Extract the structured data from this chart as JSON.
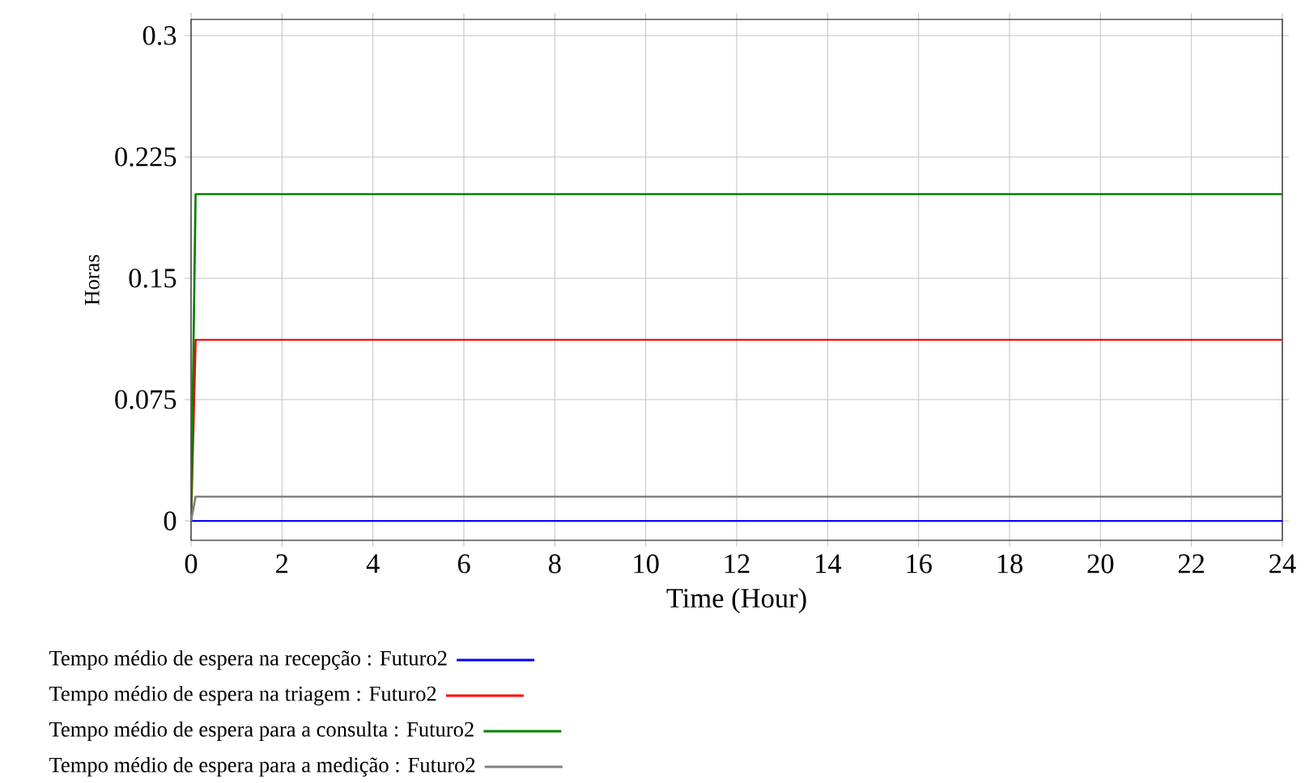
{
  "chart_data": {
    "type": "line",
    "xlabel": "Time (Hour)",
    "ylabel": "Horas",
    "xlim": [
      0,
      24
    ],
    "xticks": [
      0,
      2,
      4,
      6,
      8,
      10,
      12,
      14,
      16,
      18,
      20,
      22,
      24
    ],
    "ylim": [
      -0.012,
      0.31
    ],
    "yticks": [
      0,
      0.075,
      0.15,
      0.225,
      0.3
    ],
    "grid": true,
    "legend": "bottom",
    "series": [
      {
        "name": "Tempo médio de espera na recepção : Futuro2",
        "color": "#0000ff",
        "x": [
          0,
          0.1,
          24
        ],
        "values": [
          0,
          0,
          0
        ]
      },
      {
        "name": "Tempo médio de espera na triagem : Futuro2",
        "color": "#ff0000",
        "x": [
          0,
          0.1,
          24
        ],
        "values": [
          0,
          0.112,
          0.112
        ]
      },
      {
        "name": "Tempo médio de espera para a consulta : Futuro2",
        "color": "#008000",
        "x": [
          0,
          0.1,
          24
        ],
        "values": [
          0,
          0.202,
          0.202
        ]
      },
      {
        "name": "Tempo médio de espera para a medição : Futuro2",
        "color": "#808080",
        "x": [
          0,
          0.1,
          24
        ],
        "values": [
          0,
          0.015,
          0.015
        ]
      }
    ]
  }
}
